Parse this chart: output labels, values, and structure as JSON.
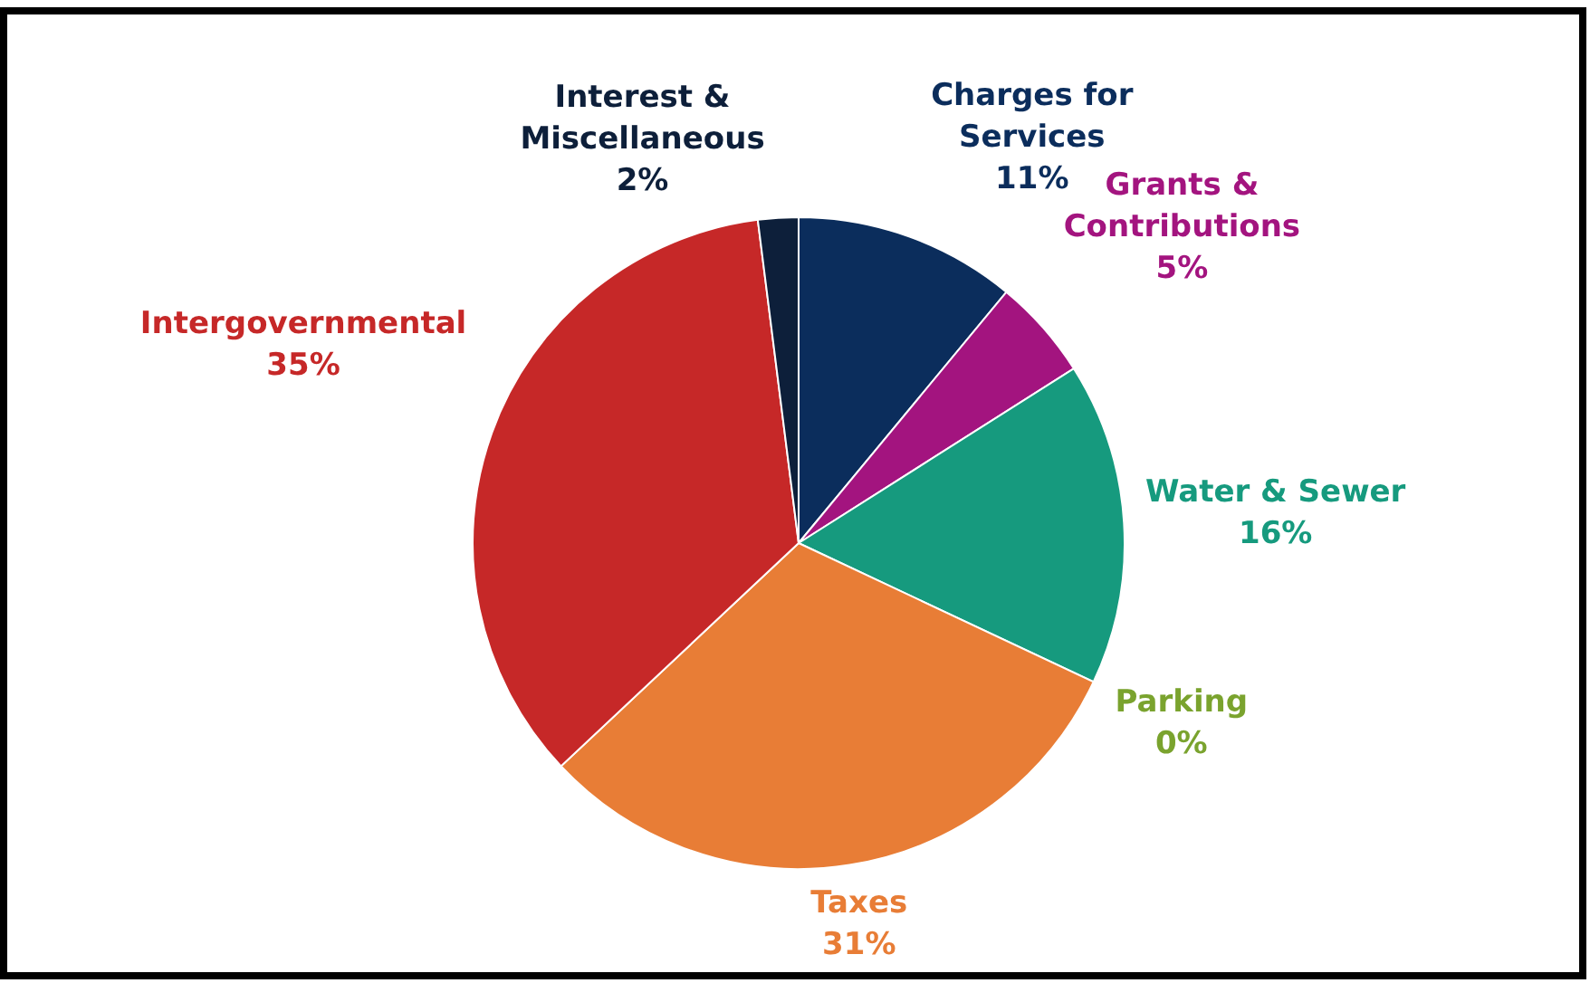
{
  "chart_data": {
    "type": "pie",
    "categories": [
      "Charges for Services",
      "Grants & Contributions",
      "Water & Sewer",
      "Parking",
      "Taxes",
      "Intergovernmental",
      "Interest & Miscellaneous"
    ],
    "values": [
      11,
      5,
      16,
      0,
      31,
      35,
      2
    ],
    "value_labels": [
      "11%",
      "5%",
      "16%",
      "0%",
      "31%",
      "35%",
      "2%"
    ],
    "colors": [
      "#0b2d5c",
      "#a3147f",
      "#169a7e",
      "#7aa32e",
      "#e87d36",
      "#c62828",
      "#0d1f3a"
    ],
    "legend": false
  }
}
